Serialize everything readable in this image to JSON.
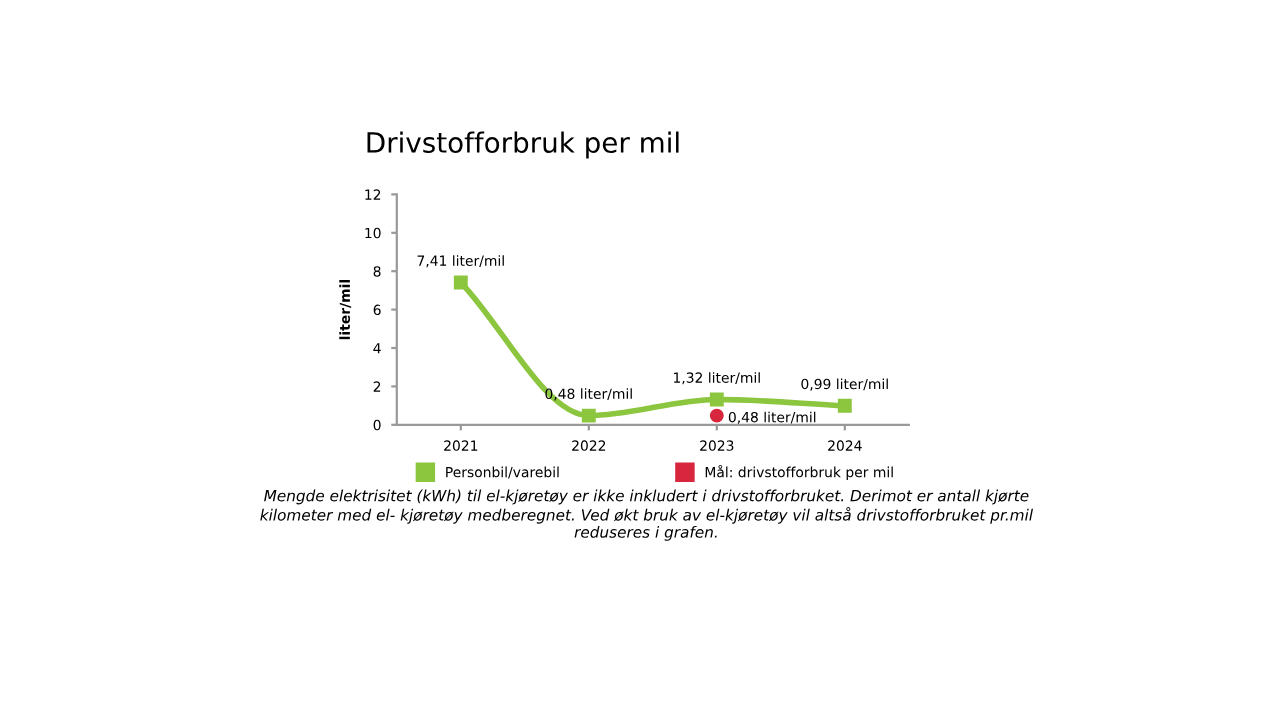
{
  "chart_data": {
    "type": "line",
    "title": "Drivstofforbruk per mil",
    "ylabel": "liter/mil",
    "categories": [
      "2021",
      "2022",
      "2023",
      "2024"
    ],
    "series": [
      {
        "name": "Personbil/varebil",
        "color": "#8cc63f",
        "values": [
          7.41,
          0.48,
          1.32,
          0.99
        ],
        "value_labels": [
          "7,41 liter/mil",
          "0,48 liter/mil",
          "1,32 liter/mil",
          "0,99 liter/mil"
        ],
        "marker": "square"
      },
      {
        "name": "Mål: drivstofforbruk per mil",
        "type": "scatter",
        "color": "#d7263d",
        "values": [
          null,
          null,
          0.48,
          null
        ],
        "value_labels": [
          null,
          null,
          "0,48 liter/mil",
          null
        ],
        "marker": "circle"
      }
    ],
    "ylim": [
      0,
      12
    ],
    "yticks": [
      0,
      2,
      4,
      6,
      8,
      10,
      12
    ],
    "grid": false,
    "legend": "bottom",
    "annotations": [
      "Mengde elektrisitet (kWh) til el-kjøretøy er ikke inkludert i drivstofforbruket. Derimot er antall kjørte kilometer med el- kjøretøy medberegnet. Ved økt bruk av el-kjøretøy vil altså drivstofforbruket pr.mil reduseres i grafen."
    ]
  }
}
